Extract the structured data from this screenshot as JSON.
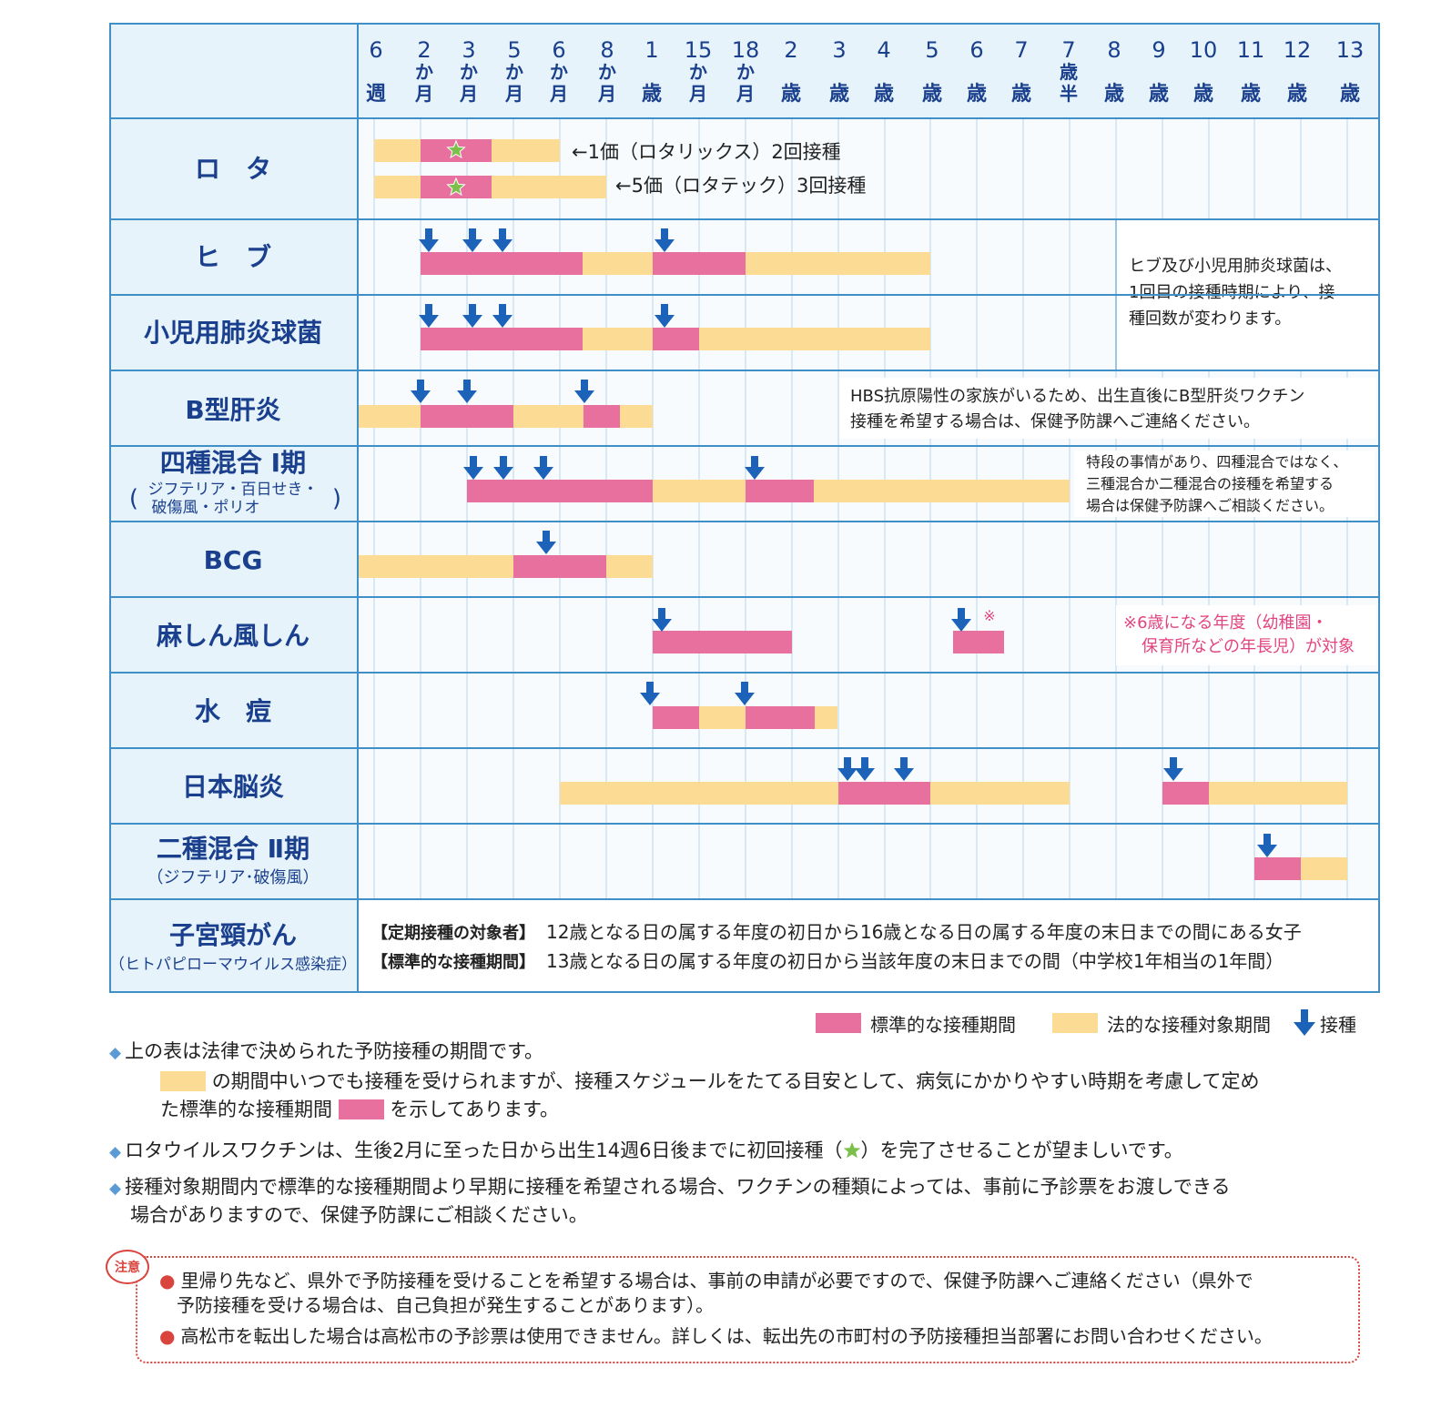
{
  "colors": {
    "header_bg": "#e6f3fb",
    "border": "#3f8fc8",
    "grid": "#b9d6ea",
    "title_blue": "#1a3f8c",
    "standard": "#e8709f",
    "legal": "#fcdb95",
    "arrow": "#1c62b8",
    "star": "#7cc04b",
    "caution": "#d9443e",
    "note_pink": "#e2447f"
  },
  "columns": [
    {
      "num": "6",
      "unit": "週"
    },
    {
      "num": "2",
      "unit": "か月"
    },
    {
      "num": "3",
      "unit": "か月"
    },
    {
      "num": "5",
      "unit": "か月"
    },
    {
      "num": "6",
      "unit": "か月"
    },
    {
      "num": "8",
      "unit": "か月"
    },
    {
      "num": "1",
      "unit": "歳"
    },
    {
      "num": "15",
      "unit": "か月"
    },
    {
      "num": "18",
      "unit": "か月"
    },
    {
      "num": "2",
      "unit": "歳"
    },
    {
      "num": "3",
      "unit": "歳"
    },
    {
      "num": "4",
      "unit": "歳"
    },
    {
      "num": "5",
      "unit": "歳"
    },
    {
      "num": "6",
      "unit": "歳"
    },
    {
      "num": "7",
      "unit": "歳"
    },
    {
      "num": "7",
      "unit": "歳半"
    },
    {
      "num": "8",
      "unit": "歳"
    },
    {
      "num": "9",
      "unit": "歳"
    },
    {
      "num": "10",
      "unit": "歳"
    },
    {
      "num": "11",
      "unit": "歳"
    },
    {
      "num": "12",
      "unit": "歳"
    },
    {
      "num": "13",
      "unit": "歳"
    }
  ],
  "rows": [
    {
      "name": "ロ　タ",
      "sub": ""
    },
    {
      "name": "ヒ　ブ",
      "sub": ""
    },
    {
      "name": "小児用肺炎球菌",
      "sub": ""
    },
    {
      "name": "B型肝炎",
      "sub": ""
    },
    {
      "name": "四種混合 Ⅰ期",
      "sub": "ジフテリア・百日せき・破傷風・ポリオ",
      "sub_lines": [
        "ジフテリア・百日せき・",
        "破傷風・ポリオ"
      ]
    },
    {
      "name": "BCG",
      "sub": ""
    },
    {
      "name": "麻しん風しん",
      "sub": ""
    },
    {
      "name": "水　痘",
      "sub": ""
    },
    {
      "name": "日本脳炎",
      "sub": ""
    },
    {
      "name": "二種混合 Ⅱ期",
      "sub": "（ジフテリア･破傷風）"
    },
    {
      "name": "子宮頸がん",
      "sub": "（ヒトパピローマウイルス感染症）"
    }
  ],
  "rota_notes": [
    "←1価（ロタリックス）2回接種",
    "←5価（ロタテック）3回接種"
  ],
  "row_notes": {
    "hib_pneumo": [
      "ヒブ及び小児用肺炎球菌は、",
      "1回目の接種時期により、接",
      "種回数が変わります。"
    ],
    "hepb": [
      "HBS抗原陽性の家族がいるため、出生直後にB型肝炎ワクチン",
      "接種を希望する場合は、保健予防課へご連絡ください。"
    ],
    "dpt": [
      "特段の事情があり、四種混合ではなく、",
      "三種混合か二種混合の接種を希望する",
      "場合は保健予防課へご相談ください。"
    ],
    "mr_mark": "※",
    "mr": [
      "※6歳になる年度（幼稚園・",
      "保育所などの年長児）が対象"
    ]
  },
  "hpv": [
    {
      "label": "【定期接種の対象者】",
      "text": "12歳となる日の属する年度の初日から16歳となる日の属する年度の末日までの間にある女子"
    },
    {
      "label": "【標準的な接種期間】",
      "text": "13歳となる日の属する年度の初日から当該年度の末日までの間（中学校1年相当の1年間）"
    }
  ],
  "legend": {
    "standard": "標準的な接種期間",
    "legal": "法的な接種対象期間",
    "arrow": "接種"
  },
  "notes": {
    "n1": "上の表は法律で決められた予防接種の期間です。",
    "n1b_pre": "の期間中いつでも接種を受けられますが、接種スケジュールをたてる目安として、病気にかかりやすい時期を考慮して定め",
    "n1c_pre": "た標準的な接種期間",
    "n1c_post": "を示してあります。",
    "n2_pre": "ロタウイルスワクチンは、生後2月に至った日から出生14週6日後までに初回接種（",
    "n2_post": "）を完了させることが望ましいです。",
    "n3a": "接種対象期間内で標準的な接種期間より早期に接種を希望される場合、ワクチンの種類によっては、事前に予診票をお渡しできる",
    "n3b": "場合がありますので、保健予防課にご相談ください。"
  },
  "caution": {
    "badge": "注意",
    "c1a": "里帰り先など、県外で予防接種を受けることを希望する場合は、事前の申請が必要ですので、保健予防課へご連絡ください（県外で",
    "c1b": "予防接種を受ける場合は、自己負担が発生することがあります）。",
    "c2": "高松市を転出した場合は高松市の予診票は使用できません。詳しくは、転出先の市町村の予防接種担当部署にお問い合わせください。"
  }
}
